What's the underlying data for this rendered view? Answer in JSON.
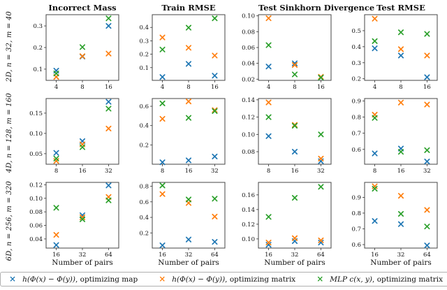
{
  "figure": {
    "xlabel": "Number of pairs",
    "col_titles": [
      "Incorrect Mass",
      "Train RMSE",
      "Test Sinkhorn Divergence",
      "Test RMSE"
    ],
    "row_labels": [
      "2D, n = 32, m = 40",
      "4D, n = 128, m = 160",
      "6D, n = 256, m = 320"
    ]
  },
  "legend": {
    "entries": [
      {
        "marker": "×",
        "color": "#1f77b4",
        "formula": "h(Φ(x) − Φ(y))",
        "rest": ", optimizing map"
      },
      {
        "marker": "×",
        "color": "#ff7f0e",
        "formula": "h(Φ(x) − Φ(y))",
        "rest": ", optimizing matrix"
      },
      {
        "marker": "×",
        "color": "#2ca02c",
        "formula": "MLP c(x, y)",
        "rest": ", optimizing matrix"
      }
    ]
  },
  "chart_data": [
    {
      "type": "scatter",
      "row_label": "2D, n = 32, m = 40",
      "title": "Incorrect Mass",
      "x": [
        4,
        8,
        16
      ],
      "x_tick_labels": [
        "4",
        "8",
        "16"
      ],
      "y_ticks": [
        {
          "v": 0.1,
          "label": "0.1"
        },
        {
          "v": 0.2,
          "label": "0.2"
        },
        {
          "v": 0.3,
          "label": "0.3"
        }
      ],
      "ylim": [
        0.048,
        0.352
      ],
      "series": [
        {
          "name": "optimizing map",
          "color": "#1f77b4",
          "values": [
            0.093,
            0.158,
            0.3
          ]
        },
        {
          "name": "optimizing matrix",
          "color": "#ff7f0e",
          "values": [
            0.064,
            0.16,
            0.172
          ]
        },
        {
          "name": "MLP optimizing matrix",
          "color": "#2ca02c",
          "values": [
            0.08,
            0.202,
            0.335
          ]
        }
      ]
    },
    {
      "type": "scatter",
      "row_label": "2D, n = 32, m = 40",
      "title": "Train RMSE",
      "x": [
        4,
        8,
        16
      ],
      "x_tick_labels": [
        "4",
        "8",
        "16"
      ],
      "y_ticks": [
        {
          "v": 0.1,
          "label": "0.1"
        },
        {
          "v": 0.2,
          "label": "0.2"
        },
        {
          "v": 0.3,
          "label": "0.3"
        },
        {
          "v": 0.4,
          "label": "0.4"
        }
      ],
      "ylim": [
        0.005,
        0.495
      ],
      "series": [
        {
          "name": "optimizing map",
          "color": "#1f77b4",
          "values": [
            0.03,
            0.128,
            0.04
          ]
        },
        {
          "name": "optimizing matrix",
          "color": "#ff7f0e",
          "values": [
            0.325,
            0.248,
            0.19
          ]
        },
        {
          "name": "MLP optimizing matrix",
          "color": "#2ca02c",
          "values": [
            0.235,
            0.398,
            0.468
          ]
        }
      ]
    },
    {
      "type": "scatter",
      "row_label": "2D, n = 32, m = 40",
      "title": "Test Sinkhorn Divergence",
      "x": [
        4,
        8,
        16
      ],
      "x_tick_labels": [
        "4",
        "8",
        "16"
      ],
      "y_ticks": [
        {
          "v": 0.02,
          "label": "0.02"
        },
        {
          "v": 0.04,
          "label": "0.04"
        },
        {
          "v": 0.06,
          "label": "0.06"
        },
        {
          "v": 0.08,
          "label": "0.08"
        },
        {
          "v": 0.1,
          "label": "0.10"
        }
      ],
      "ylim": [
        0.0185,
        0.1015
      ],
      "series": [
        {
          "name": "optimizing map",
          "color": "#1f77b4",
          "values": [
            0.036,
            0.04,
            0.022
          ]
        },
        {
          "name": "optimizing matrix",
          "color": "#ff7f0e",
          "values": [
            0.097,
            0.038,
            0.023
          ]
        },
        {
          "name": "MLP optimizing matrix",
          "color": "#2ca02c",
          "values": [
            0.063,
            0.026,
            0.022
          ]
        }
      ]
    },
    {
      "type": "scatter",
      "row_label": "2D, n = 32, m = 40",
      "title": "Test RMSE",
      "x": [
        4,
        8,
        16
      ],
      "x_tick_labels": [
        "4",
        "8",
        "16"
      ],
      "y_ticks": [
        {
          "v": 0.2,
          "label": "0.2"
        },
        {
          "v": 0.3,
          "label": "0.3"
        },
        {
          "v": 0.4,
          "label": "0.4"
        },
        {
          "v": 0.5,
          "label": "0.5"
        }
      ],
      "ylim": [
        0.19,
        0.6
      ],
      "series": [
        {
          "name": "optimizing map",
          "color": "#1f77b4",
          "values": [
            0.39,
            0.345,
            0.21
          ]
        },
        {
          "name": "optimizing matrix",
          "color": "#ff7f0e",
          "values": [
            0.575,
            0.385,
            0.345
          ]
        },
        {
          "name": "MLP optimizing matrix",
          "color": "#2ca02c",
          "values": [
            0.435,
            0.49,
            0.48
          ]
        }
      ]
    },
    {
      "type": "scatter",
      "row_label": "4D, n = 128, m = 160",
      "title": "Incorrect Mass",
      "x": [
        8,
        16,
        32
      ],
      "x_tick_labels": [
        "8",
        "16",
        "32"
      ],
      "y_ticks": [
        {
          "v": 0.05,
          "label": "0.05"
        },
        {
          "v": 0.1,
          "label": "0.10"
        },
        {
          "v": 0.15,
          "label": "0.15"
        }
      ],
      "ylim": [
        0.024,
        0.186
      ],
      "series": [
        {
          "name": "optimizing map",
          "color": "#1f77b4",
          "values": [
            0.052,
            0.081,
            0.178
          ]
        },
        {
          "name": "optimizing matrix",
          "color": "#ff7f0e",
          "values": [
            0.032,
            0.073,
            0.112
          ]
        },
        {
          "name": "MLP optimizing matrix",
          "color": "#2ca02c",
          "values": [
            0.038,
            0.066,
            0.161
          ]
        }
      ]
    },
    {
      "type": "scatter",
      "row_label": "4D, n = 128, m = 160",
      "title": "Train RMSE",
      "x": [
        8,
        16,
        32
      ],
      "x_tick_labels": [
        "8",
        "16",
        "32"
      ],
      "y_ticks": [
        {
          "v": 0.2,
          "label": "0.2"
        },
        {
          "v": 0.4,
          "label": "0.4"
        },
        {
          "v": 0.6,
          "label": "0.6"
        }
      ],
      "ylim": [
        0.0,
        0.68
      ],
      "series": [
        {
          "name": "optimizing map",
          "color": "#1f77b4",
          "values": [
            0.02,
            0.04,
            0.08
          ]
        },
        {
          "name": "optimizing matrix",
          "color": "#ff7f0e",
          "values": [
            0.47,
            0.65,
            0.56
          ]
        },
        {
          "name": "MLP optimizing matrix",
          "color": "#2ca02c",
          "values": [
            0.63,
            0.48,
            0.55
          ]
        }
      ]
    },
    {
      "type": "scatter",
      "row_label": "4D, n = 128, m = 160",
      "title": "Test Sinkhorn Divergence",
      "x": [
        8,
        16,
        32
      ],
      "x_tick_labels": [
        "8",
        "16",
        "32"
      ],
      "y_ticks": [
        {
          "v": 0.08,
          "label": "0.08"
        },
        {
          "v": 0.1,
          "label": "0.10"
        },
        {
          "v": 0.12,
          "label": "0.12"
        },
        {
          "v": 0.14,
          "label": "0.14"
        }
      ],
      "ylim": [
        0.0655,
        0.1415
      ],
      "series": [
        {
          "name": "optimizing map",
          "color": "#1f77b4",
          "values": [
            0.098,
            0.08,
            0.069
          ]
        },
        {
          "name": "optimizing matrix",
          "color": "#ff7f0e",
          "values": [
            0.137,
            0.111,
            0.072
          ]
        },
        {
          "name": "MLP optimizing matrix",
          "color": "#2ca02c",
          "values": [
            0.12,
            0.11,
            0.1
          ]
        }
      ]
    },
    {
      "type": "scatter",
      "row_label": "4D, n = 128, m = 160",
      "title": "Test RMSE",
      "x": [
        8,
        16,
        32
      ],
      "x_tick_labels": [
        "8",
        "16",
        "32"
      ],
      "y_ticks": [
        {
          "v": 0.6,
          "label": "0.6"
        },
        {
          "v": 0.7,
          "label": "0.7"
        },
        {
          "v": 0.8,
          "label": "0.8"
        },
        {
          "v": 0.9,
          "label": "0.9"
        }
      ],
      "ylim": [
        0.508,
        0.915
      ],
      "series": [
        {
          "name": "optimizing map",
          "color": "#1f77b4",
          "values": [
            0.575,
            0.605,
            0.525
          ]
        },
        {
          "name": "optimizing matrix",
          "color": "#ff7f0e",
          "values": [
            0.815,
            0.89,
            0.878
          ]
        },
        {
          "name": "MLP optimizing matrix",
          "color": "#2ca02c",
          "values": [
            0.795,
            0.585,
            0.595
          ]
        }
      ]
    },
    {
      "type": "scatter",
      "row_label": "6D, n = 256, m = 320",
      "title": "Incorrect Mass",
      "x": [
        16,
        32,
        64
      ],
      "x_tick_labels": [
        "16",
        "32",
        "64"
      ],
      "y_ticks": [
        {
          "v": 0.04,
          "label": "0.04"
        },
        {
          "v": 0.06,
          "label": "0.06"
        },
        {
          "v": 0.08,
          "label": "0.08"
        },
        {
          "v": 0.1,
          "label": "0.10"
        },
        {
          "v": 0.12,
          "label": "0.12"
        }
      ],
      "ylim": [
        0.0265,
        0.1235
      ],
      "series": [
        {
          "name": "optimizing map",
          "color": "#1f77b4",
          "values": [
            0.031,
            0.075,
            0.119
          ]
        },
        {
          "name": "optimizing matrix",
          "color": "#ff7f0e",
          "values": [
            0.046,
            0.072,
            0.102
          ]
        },
        {
          "name": "MLP optimizing matrix",
          "color": "#2ca02c",
          "values": [
            0.086,
            0.069,
            0.097
          ]
        }
      ]
    },
    {
      "type": "scatter",
      "row_label": "6D, n = 256, m = 320",
      "title": "Train RMSE",
      "x": [
        16,
        32,
        64
      ],
      "x_tick_labels": [
        "16",
        "32",
        "64"
      ],
      "y_ticks": [
        {
          "v": 0.2,
          "label": "0.2"
        },
        {
          "v": 0.4,
          "label": "0.4"
        },
        {
          "v": 0.6,
          "label": "0.6"
        },
        {
          "v": 0.8,
          "label": "0.8"
        }
      ],
      "ylim": [
        0.005,
        0.85
      ],
      "series": [
        {
          "name": "optimizing map",
          "color": "#1f77b4",
          "values": [
            0.04,
            0.115,
            0.085
          ]
        },
        {
          "name": "optimizing matrix",
          "color": "#ff7f0e",
          "values": [
            0.7,
            0.585,
            0.41
          ]
        },
        {
          "name": "MLP optimizing matrix",
          "color": "#2ca02c",
          "values": [
            0.81,
            0.63,
            0.64
          ]
        }
      ]
    },
    {
      "type": "scatter",
      "row_label": "6D, n = 256, m = 320",
      "title": "Test Sinkhorn Divergence",
      "x": [
        16,
        32,
        64
      ],
      "x_tick_labels": [
        "16",
        "32",
        "64"
      ],
      "y_ticks": [
        {
          "v": 0.1,
          "label": "0.10"
        },
        {
          "v": 0.12,
          "label": "0.12"
        },
        {
          "v": 0.14,
          "label": "0.14"
        },
        {
          "v": 0.16,
          "label": "0.16"
        }
      ],
      "ylim": [
        0.0875,
        0.177
      ],
      "series": [
        {
          "name": "optimizing map",
          "color": "#1f77b4",
          "values": [
            0.092,
            0.097,
            0.095
          ]
        },
        {
          "name": "optimizing matrix",
          "color": "#ff7f0e",
          "values": [
            0.095,
            0.101,
            0.098
          ]
        },
        {
          "name": "MLP optimizing matrix",
          "color": "#2ca02c",
          "values": [
            0.13,
            0.156,
            0.171
          ]
        }
      ]
    },
    {
      "type": "scatter",
      "row_label": "6D, n = 256, m = 320",
      "title": "Test RMSE",
      "x": [
        16,
        32,
        64
      ],
      "x_tick_labels": [
        "16",
        "32",
        "64"
      ],
      "y_ticks": [
        {
          "v": 0.6,
          "label": "0.6"
        },
        {
          "v": 0.7,
          "label": "0.7"
        },
        {
          "v": 0.8,
          "label": "0.8"
        },
        {
          "v": 0.9,
          "label": "0.9"
        }
      ],
      "ylim": [
        0.578,
        0.995
      ],
      "series": [
        {
          "name": "optimizing map",
          "color": "#1f77b4",
          "values": [
            0.75,
            0.73,
            0.595
          ]
        },
        {
          "name": "optimizing matrix",
          "color": "#ff7f0e",
          "values": [
            0.97,
            0.91,
            0.82
          ]
        },
        {
          "name": "MLP optimizing matrix",
          "color": "#2ca02c",
          "values": [
            0.955,
            0.795,
            0.715
          ]
        }
      ]
    }
  ]
}
